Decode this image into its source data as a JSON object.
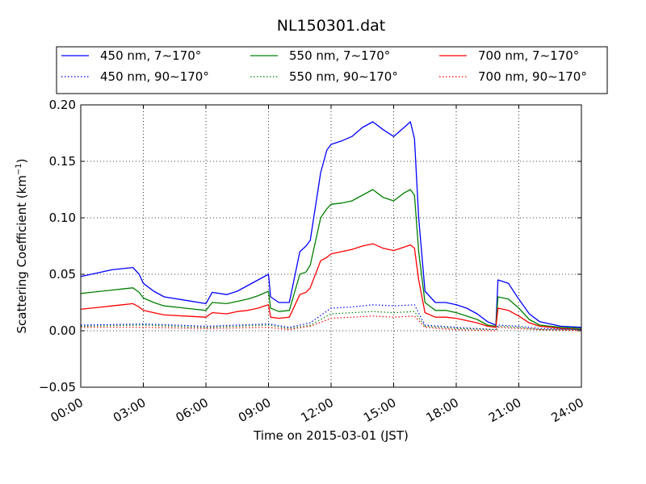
{
  "chart_data": {
    "type": "line",
    "title": "NL150301.dat",
    "xlabel": "Time on 2015-03-01 (JST)",
    "ylabel": "Scattering Coefficient (km",
    "ylabel_exp": "−1",
    "ylabel_close": ")",
    "x_tick_labels": [
      "00:00",
      "03:00",
      "06:00",
      "09:00",
      "12:00",
      "15:00",
      "18:00",
      "21:00",
      "24:00"
    ],
    "x_tick_hours": [
      0,
      3,
      6,
      9,
      12,
      15,
      18,
      21,
      24
    ],
    "y_ticks": [
      -0.05,
      0.0,
      0.05,
      0.1,
      0.15,
      0.2
    ],
    "y_tick_labels": [
      "−0.05",
      "0.00",
      "0.05",
      "0.10",
      "0.15",
      "0.20"
    ],
    "xlim_hours": [
      0,
      24
    ],
    "ylim": [
      -0.05,
      0.2
    ],
    "grid": true,
    "legend_position": "top, above plot",
    "x_unit": "hours since 00:00 JST",
    "series": [
      {
        "name": "450 nm, 7∼170°",
        "color": "#0000ff",
        "style": "solid",
        "x": [
          0,
          0.5,
          1.0,
          1.5,
          2.0,
          2.5,
          2.8,
          3.0,
          3.5,
          4.0,
          5.0,
          6.0,
          6.3,
          7.0,
          7.5,
          8.0,
          8.5,
          9.0,
          9.1,
          9.5,
          10.0,
          10.5,
          10.8,
          11.0,
          11.5,
          11.8,
          12.0,
          12.5,
          13.0,
          13.5,
          14.0,
          14.5,
          15.0,
          15.5,
          15.8,
          16.0,
          16.2,
          16.5,
          17.0,
          17.5,
          18.0,
          18.5,
          19.0,
          19.5,
          19.9,
          20.0,
          20.5,
          21.0,
          21.5,
          22.0,
          23.0,
          24.0
        ],
        "y": [
          0.048,
          0.05,
          0.052,
          0.054,
          0.055,
          0.056,
          0.05,
          0.042,
          0.035,
          0.03,
          0.027,
          0.024,
          0.034,
          0.032,
          0.035,
          0.04,
          0.045,
          0.05,
          0.03,
          0.025,
          0.025,
          0.07,
          0.075,
          0.08,
          0.14,
          0.16,
          0.165,
          0.168,
          0.172,
          0.18,
          0.185,
          0.178,
          0.172,
          0.18,
          0.185,
          0.17,
          0.1,
          0.035,
          0.025,
          0.025,
          0.023,
          0.02,
          0.015,
          0.008,
          0.005,
          0.045,
          0.042,
          0.028,
          0.015,
          0.008,
          0.004,
          0.003
        ]
      },
      {
        "name": "550 nm, 7∼170°",
        "color": "#008000",
        "style": "solid",
        "x": [
          0,
          0.5,
          1.0,
          1.5,
          2.0,
          2.5,
          2.8,
          3.0,
          3.5,
          4.0,
          5.0,
          6.0,
          6.3,
          7.0,
          7.5,
          8.0,
          8.5,
          9.0,
          9.1,
          9.5,
          10.0,
          10.5,
          10.8,
          11.0,
          11.5,
          11.8,
          12.0,
          12.5,
          13.0,
          13.5,
          14.0,
          14.5,
          15.0,
          15.5,
          15.8,
          16.0,
          16.2,
          16.5,
          17.0,
          17.5,
          18.0,
          18.5,
          19.0,
          19.5,
          19.9,
          20.0,
          20.5,
          21.0,
          21.5,
          22.0,
          23.0,
          24.0
        ],
        "y": [
          0.033,
          0.034,
          0.035,
          0.036,
          0.037,
          0.038,
          0.034,
          0.029,
          0.025,
          0.022,
          0.02,
          0.018,
          0.025,
          0.024,
          0.026,
          0.028,
          0.031,
          0.035,
          0.02,
          0.017,
          0.018,
          0.05,
          0.052,
          0.058,
          0.1,
          0.108,
          0.112,
          0.113,
          0.115,
          0.12,
          0.125,
          0.118,
          0.115,
          0.122,
          0.125,
          0.12,
          0.07,
          0.025,
          0.018,
          0.018,
          0.016,
          0.013,
          0.01,
          0.005,
          0.004,
          0.03,
          0.028,
          0.02,
          0.01,
          0.005,
          0.003,
          0.002
        ]
      },
      {
        "name": "700 nm, 7∼170°",
        "color": "#ff0000",
        "style": "solid",
        "x": [
          0,
          0.5,
          1.0,
          1.5,
          2.0,
          2.5,
          2.8,
          3.0,
          3.5,
          4.0,
          5.0,
          6.0,
          6.3,
          7.0,
          7.5,
          8.0,
          8.5,
          9.0,
          9.1,
          9.5,
          10.0,
          10.5,
          10.8,
          11.0,
          11.5,
          11.8,
          12.0,
          12.5,
          13.0,
          13.5,
          14.0,
          14.5,
          15.0,
          15.5,
          15.8,
          16.0,
          16.2,
          16.5,
          17.0,
          17.5,
          18.0,
          18.5,
          19.0,
          19.5,
          19.9,
          20.0,
          20.5,
          21.0,
          21.5,
          22.0,
          23.0,
          24.0
        ],
        "y": [
          0.019,
          0.02,
          0.021,
          0.022,
          0.023,
          0.024,
          0.021,
          0.018,
          0.016,
          0.014,
          0.013,
          0.012,
          0.016,
          0.015,
          0.017,
          0.018,
          0.02,
          0.023,
          0.012,
          0.011,
          0.012,
          0.032,
          0.034,
          0.038,
          0.062,
          0.065,
          0.068,
          0.07,
          0.072,
          0.075,
          0.077,
          0.073,
          0.071,
          0.074,
          0.076,
          0.073,
          0.045,
          0.016,
          0.012,
          0.012,
          0.011,
          0.009,
          0.007,
          0.004,
          0.003,
          0.02,
          0.018,
          0.013,
          0.007,
          0.004,
          0.002,
          0.001
        ]
      },
      {
        "name": "450 nm, 90∼170°",
        "color": "#0000ff",
        "style": "dotted",
        "x": [
          0,
          3,
          6,
          9,
          10,
          11,
          12,
          13,
          14,
          15,
          16,
          16.5,
          18,
          19.9,
          20,
          21,
          22,
          24
        ],
        "y": [
          0.005,
          0.006,
          0.004,
          0.006,
          0.003,
          0.007,
          0.02,
          0.021,
          0.023,
          0.022,
          0.023,
          0.005,
          0.003,
          0.001,
          0.005,
          0.004,
          0.002,
          0.001
        ]
      },
      {
        "name": "550 nm, 90∼170°",
        "color": "#008000",
        "style": "dotted",
        "x": [
          0,
          3,
          6,
          9,
          10,
          11,
          12,
          13,
          14,
          15,
          16,
          16.5,
          18,
          19.9,
          20,
          21,
          22,
          24
        ],
        "y": [
          0.004,
          0.005,
          0.003,
          0.005,
          0.002,
          0.005,
          0.015,
          0.016,
          0.017,
          0.016,
          0.017,
          0.004,
          0.002,
          0.001,
          0.004,
          0.003,
          0.001,
          0.001
        ]
      },
      {
        "name": "700 nm, 90∼170°",
        "color": "#ff0000",
        "style": "dotted",
        "x": [
          0,
          3,
          6,
          9,
          10,
          11,
          12,
          13,
          14,
          15,
          16,
          16.5,
          18,
          19.9,
          20,
          21,
          22,
          24
        ],
        "y": [
          0.003,
          0.003,
          0.002,
          0.003,
          0.001,
          0.004,
          0.011,
          0.012,
          0.013,
          0.012,
          0.013,
          0.003,
          0.001,
          0.0,
          0.003,
          0.002,
          0.001,
          0.0
        ]
      }
    ]
  }
}
